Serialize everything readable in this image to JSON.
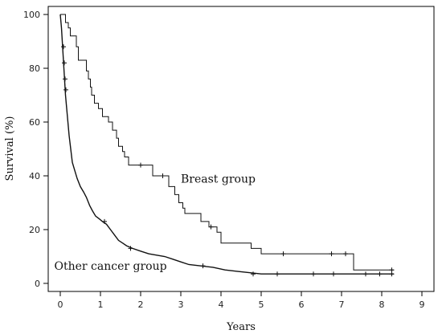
{
  "chart_data": {
    "type": "line",
    "subtype": "kaplan-meier-step",
    "xlabel": "Years",
    "ylabel": "Survival (%)",
    "xlim": [
      -0.3,
      9.3
    ],
    "ylim": [
      -3,
      103
    ],
    "xticks": [
      0,
      1,
      2,
      3,
      4,
      5,
      6,
      7,
      8,
      9
    ],
    "yticks": [
      0,
      20,
      40,
      60,
      80,
      100
    ],
    "grid": false,
    "annotations": [
      "Breast group",
      "Other cancer group"
    ],
    "series": [
      {
        "name": "Breast group",
        "annotation_anchor": [
          3.0,
          37.5
        ],
        "points": [
          [
            0,
            100
          ],
          [
            0.13,
            100
          ],
          [
            0.13,
            97
          ],
          [
            0.2,
            97
          ],
          [
            0.2,
            95
          ],
          [
            0.25,
            95
          ],
          [
            0.25,
            92
          ],
          [
            0.4,
            92
          ],
          [
            0.4,
            88
          ],
          [
            0.45,
            88
          ],
          [
            0.45,
            83
          ],
          [
            0.65,
            83
          ],
          [
            0.65,
            79
          ],
          [
            0.7,
            79
          ],
          [
            0.7,
            76
          ],
          [
            0.75,
            76
          ],
          [
            0.75,
            73
          ],
          [
            0.78,
            73
          ],
          [
            0.78,
            70
          ],
          [
            0.85,
            70
          ],
          [
            0.85,
            67
          ],
          [
            0.95,
            67
          ],
          [
            0.95,
            65
          ],
          [
            1.05,
            65
          ],
          [
            1.05,
            62
          ],
          [
            1.2,
            62
          ],
          [
            1.2,
            60
          ],
          [
            1.3,
            60
          ],
          [
            1.3,
            57
          ],
          [
            1.4,
            57
          ],
          [
            1.4,
            54
          ],
          [
            1.45,
            54
          ],
          [
            1.45,
            51
          ],
          [
            1.55,
            51
          ],
          [
            1.55,
            49
          ],
          [
            1.6,
            49
          ],
          [
            1.6,
            47
          ],
          [
            1.7,
            47
          ],
          [
            1.7,
            44
          ],
          [
            2.3,
            44
          ],
          [
            2.3,
            40
          ],
          [
            2.7,
            40
          ],
          [
            2.7,
            36
          ],
          [
            2.85,
            36
          ],
          [
            2.85,
            33
          ],
          [
            2.95,
            33
          ],
          [
            2.95,
            30
          ],
          [
            3.05,
            30
          ],
          [
            3.05,
            28
          ],
          [
            3.1,
            28
          ],
          [
            3.1,
            26
          ],
          [
            3.5,
            26
          ],
          [
            3.5,
            23
          ],
          [
            3.7,
            23
          ],
          [
            3.7,
            21
          ],
          [
            3.9,
            21
          ],
          [
            3.9,
            19
          ],
          [
            4.0,
            19
          ],
          [
            4.0,
            15
          ],
          [
            4.75,
            15
          ],
          [
            4.75,
            13
          ],
          [
            5.0,
            13
          ],
          [
            5.0,
            11
          ],
          [
            7.3,
            11
          ],
          [
            7.3,
            5
          ],
          [
            8.3,
            5
          ]
        ],
        "censored": [
          [
            2.0,
            44
          ],
          [
            2.55,
            40
          ],
          [
            3.75,
            21
          ],
          [
            5.55,
            11
          ],
          [
            6.75,
            11
          ],
          [
            7.1,
            11
          ],
          [
            8.25,
            5
          ]
        ]
      },
      {
        "name": "Other cancer group",
        "annotation_anchor": [
          -0.15,
          5.0
        ],
        "points": [
          [
            0,
            100
          ],
          [
            0.03,
            95
          ],
          [
            0.05,
            90
          ],
          [
            0.07,
            85
          ],
          [
            0.09,
            80
          ],
          [
            0.11,
            75
          ],
          [
            0.13,
            70
          ],
          [
            0.16,
            65
          ],
          [
            0.19,
            60
          ],
          [
            0.22,
            55
          ],
          [
            0.26,
            50
          ],
          [
            0.3,
            45
          ],
          [
            0.36,
            42
          ],
          [
            0.42,
            39
          ],
          [
            0.5,
            36
          ],
          [
            0.58,
            34
          ],
          [
            0.65,
            32
          ],
          [
            0.73,
            29
          ],
          [
            0.8,
            27
          ],
          [
            0.88,
            25
          ],
          [
            0.97,
            24
          ],
          [
            1.05,
            23
          ],
          [
            1.15,
            22
          ],
          [
            1.25,
            20
          ],
          [
            1.35,
            18
          ],
          [
            1.45,
            16
          ],
          [
            1.55,
            15
          ],
          [
            1.65,
            14
          ],
          [
            1.8,
            13
          ],
          [
            2.0,
            12
          ],
          [
            2.2,
            11
          ],
          [
            2.4,
            10.5
          ],
          [
            2.6,
            10
          ],
          [
            2.8,
            9
          ],
          [
            3.0,
            8
          ],
          [
            3.2,
            7
          ],
          [
            3.5,
            6.5
          ],
          [
            3.8,
            6
          ],
          [
            4.1,
            5
          ],
          [
            4.4,
            4.5
          ],
          [
            4.7,
            4
          ],
          [
            5.0,
            3.5
          ],
          [
            8.3,
            3.5
          ]
        ],
        "censored": [
          [
            0.08,
            88
          ],
          [
            0.1,
            82
          ],
          [
            0.12,
            76
          ],
          [
            0.14,
            72
          ],
          [
            1.1,
            23
          ],
          [
            1.75,
            13
          ],
          [
            3.55,
            6.5
          ],
          [
            4.8,
            3.5
          ],
          [
            5.4,
            3.5
          ],
          [
            6.3,
            3.5
          ],
          [
            6.8,
            3.5
          ],
          [
            7.6,
            3.5
          ],
          [
            7.95,
            3.5
          ],
          [
            8.25,
            3.5
          ]
        ]
      }
    ]
  }
}
